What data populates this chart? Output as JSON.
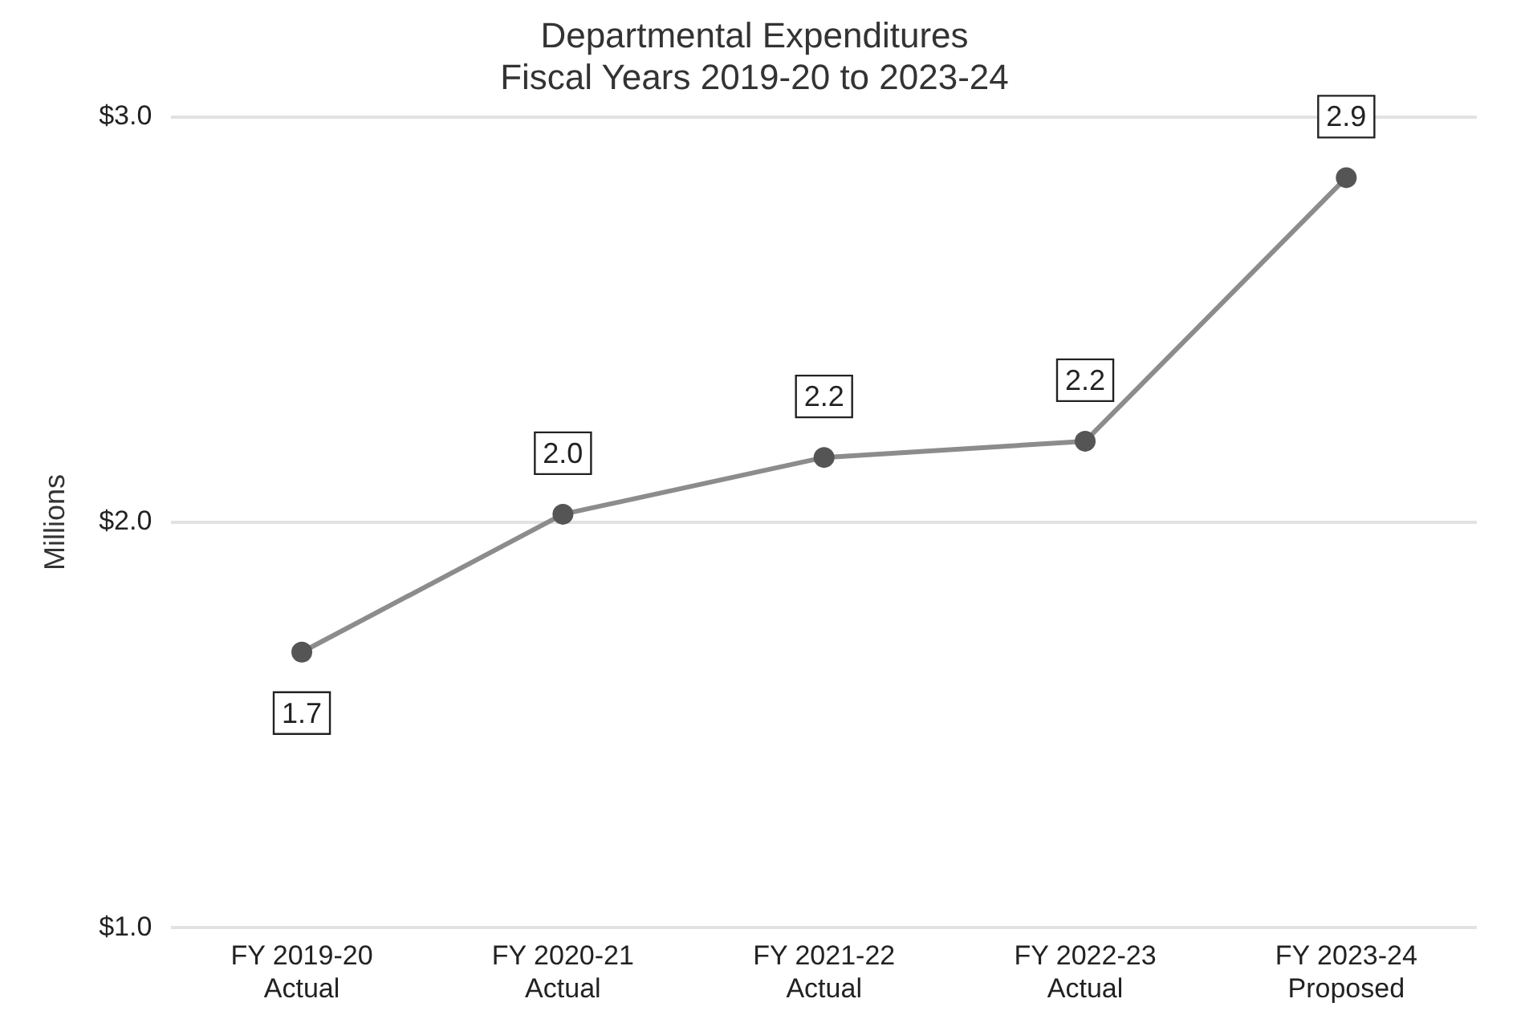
{
  "chart_data": {
    "type": "line",
    "title": "Departmental Expenditures\nFiscal Years 2019-20 to 2023-24",
    "ylabel": "Millions",
    "categories": [
      "FY 2019-20\nActual",
      "FY 2020-21\nActual",
      "FY 2021-22\nActual",
      "FY 2022-23\nActual",
      "FY 2023-24\nProposed"
    ],
    "series": [
      {
        "color": "#8c8c8c",
        "values": [
          1.68,
          2.02,
          2.16,
          2.2,
          2.85
        ],
        "value_labels": [
          "1.7",
          "2.0",
          "2.2",
          "2.2",
          "2.9"
        ]
      }
    ],
    "ylim": [
      1.0,
      3.0
    ],
    "yticks": [
      {
        "value": 1.0,
        "label": "$1.0"
      },
      {
        "value": 2.0,
        "label": "$2.0"
      },
      {
        "value": 3.0,
        "label": "$3.0"
      }
    ],
    "grid": "y",
    "legend": false,
    "marker": "circle",
    "line_style": "solid"
  }
}
